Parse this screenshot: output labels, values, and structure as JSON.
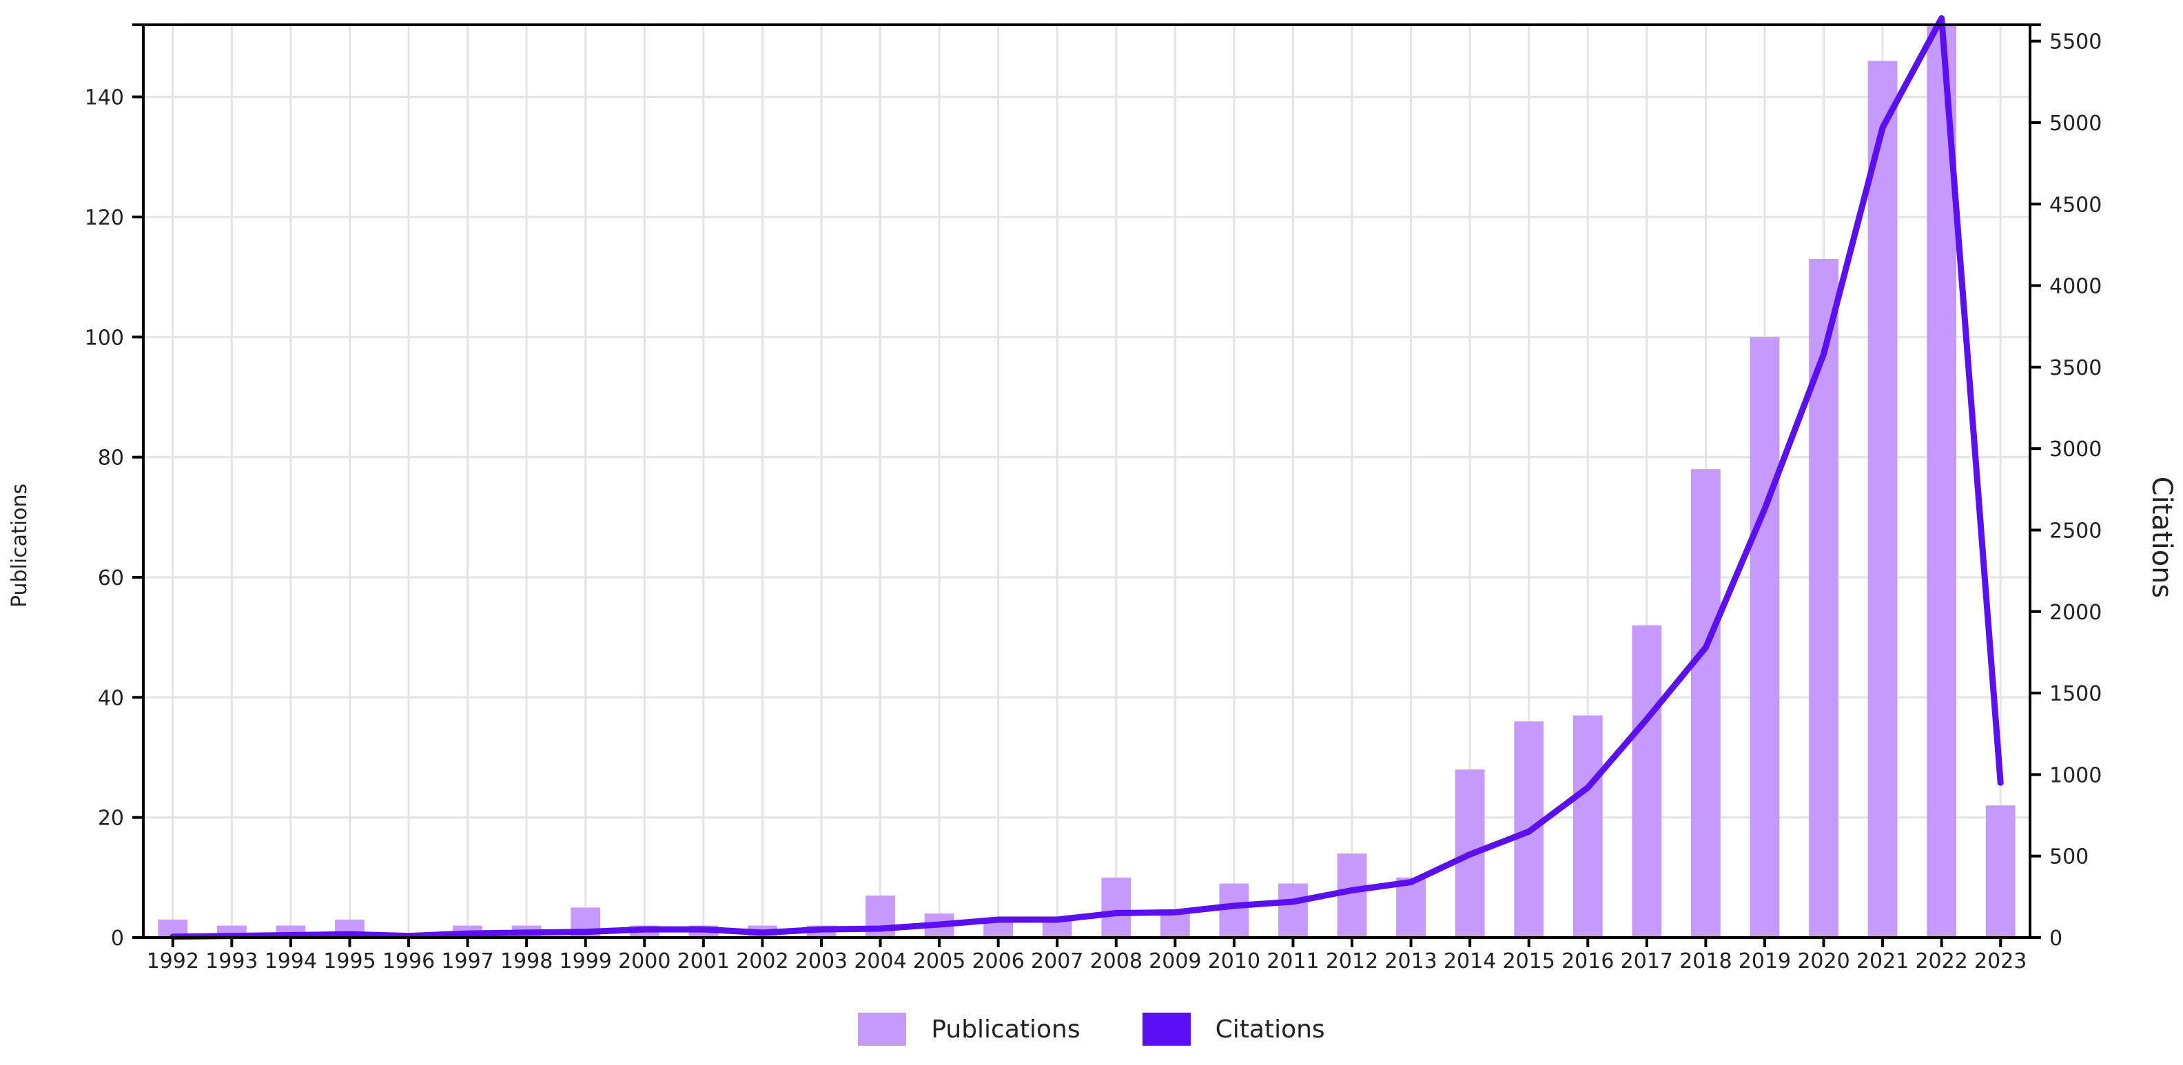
{
  "chart_data": {
    "type": "bar+line",
    "categories": [
      "1992",
      "1993",
      "1994",
      "1995",
      "1996",
      "1997",
      "1998",
      "1999",
      "2000",
      "2001",
      "2002",
      "2003",
      "2004",
      "2005",
      "2006",
      "2007",
      "2008",
      "2009",
      "2010",
      "2011",
      "2012",
      "2013",
      "2014",
      "2015",
      "2016",
      "2017",
      "2018",
      "2019",
      "2020",
      "2021",
      "2022",
      "2023"
    ],
    "series": [
      {
        "name": "Publications",
        "type": "bar",
        "axis": "left",
        "color": "#c59afc",
        "values": [
          3,
          2,
          2,
          3,
          0,
          2,
          2,
          5,
          2,
          2,
          2,
          2,
          7,
          4,
          3,
          3,
          10,
          4,
          9,
          9,
          14,
          10,
          28,
          36,
          37,
          52,
          78,
          100,
          113,
          146,
          155,
          22
        ]
      },
      {
        "name": "Citations",
        "type": "line",
        "axis": "right",
        "color": "#5a0ff5",
        "values": [
          5,
          10,
          15,
          20,
          10,
          25,
          30,
          35,
          50,
          50,
          30,
          50,
          55,
          80,
          110,
          110,
          150,
          155,
          195,
          220,
          290,
          340,
          510,
          650,
          920,
          1340,
          1780,
          2630,
          3580,
          4970,
          5640,
          950
        ]
      }
    ],
    "xlabel": "",
    "ylabel_left": "Publications",
    "ylabel_right": "Citations",
    "ylim_left": [
      0,
      152
    ],
    "yticks_left": [
      0,
      20,
      40,
      60,
      80,
      100,
      120,
      140
    ],
    "ylim_right": [
      0,
      5600
    ],
    "yticks_right": [
      0,
      500,
      1000,
      1500,
      2000,
      2500,
      3000,
      3500,
      4000,
      4500,
      5000,
      5500
    ],
    "grid": true,
    "legend_position": "bottom-center"
  }
}
